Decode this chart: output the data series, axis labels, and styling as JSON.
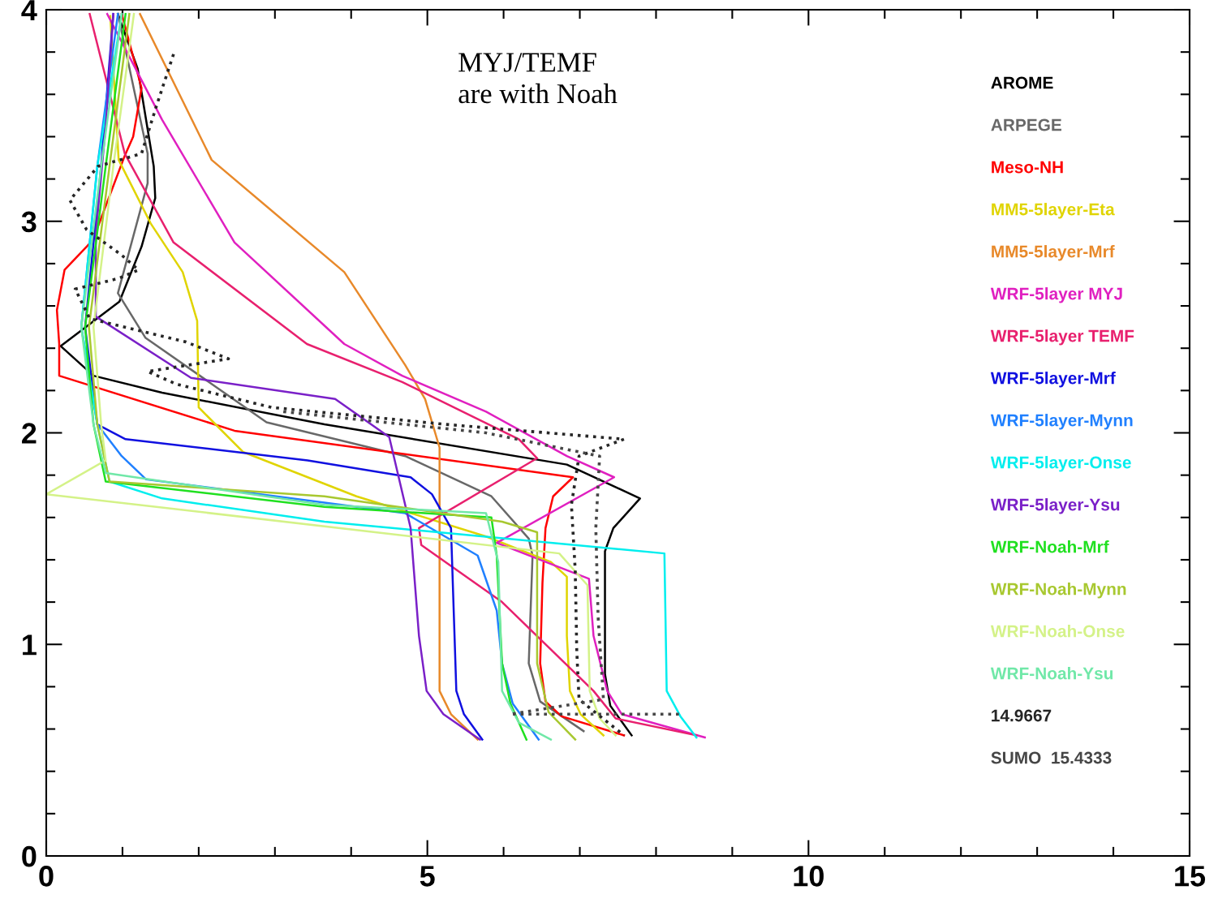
{
  "chart_data": {
    "type": "line",
    "xlim": [
      0,
      15
    ],
    "xticks": [
      0,
      5,
      10,
      15
    ],
    "ylim": [
      0,
      4
    ],
    "yticks": [
      0,
      1,
      2,
      3,
      4
    ],
    "legend": "right",
    "annotations": [
      "MYJ/TEMF\nare with Noah"
    ],
    "series": [
      {
        "name": "AROME",
        "color": "#000000",
        "x": [
          0.94,
          1.2,
          1.41,
          1.43,
          1.25,
          0.96,
          0.19,
          0.62,
          1.52,
          3.65,
          6.83,
          7.79,
          7.44,
          7.33,
          7.33,
          7.4,
          7.68
        ],
        "values": [
          3.98,
          3.72,
          3.26,
          3.11,
          2.88,
          2.62,
          2.41,
          2.27,
          2.19,
          2.04,
          1.85,
          1.69,
          1.55,
          1.44,
          0.86,
          0.71,
          0.57
        ]
      },
      {
        "name": "ARPEGE",
        "color": "#686868",
        "x": [
          0.94,
          1.33,
          1.33,
          0.94,
          1.3,
          2.89,
          4.71,
          5.84,
          6.33,
          6.38,
          6.33,
          6.48,
          7.05
        ],
        "values": [
          3.98,
          3.32,
          3.18,
          2.66,
          2.45,
          2.05,
          1.89,
          1.7,
          1.5,
          1.42,
          0.91,
          0.73,
          0.59
        ]
      },
      {
        "name": "Meso-NH",
        "color": "#ff0000",
        "x": [
          0.99,
          1.25,
          1.14,
          1.03,
          0.61,
          0.24,
          0.14,
          0.17,
          0.17,
          2.47,
          6.91,
          6.65,
          6.55,
          6.51,
          6.48,
          6.55,
          6.76,
          7.58
        ],
        "values": [
          3.98,
          3.63,
          3.4,
          3.31,
          2.91,
          2.77,
          2.58,
          2.42,
          2.27,
          2.01,
          1.79,
          1.7,
          1.55,
          1.29,
          0.91,
          0.73,
          0.66,
          0.57
        ]
      },
      {
        "name": "MM5-5layer-Eta",
        "color": "#e0d400",
        "x": [
          0.84,
          0.95,
          1.37,
          1.79,
          1.98,
          2.0,
          2.58,
          4.07,
          5.77,
          6.62,
          6.83,
          6.83,
          6.87,
          7.01,
          7.31
        ],
        "values": [
          3.97,
          3.29,
          2.99,
          2.76,
          2.53,
          2.12,
          1.91,
          1.7,
          1.51,
          1.39,
          1.32,
          1.04,
          0.78,
          0.67,
          0.57
        ]
      },
      {
        "name": "MM5-5layer-Mrf",
        "color": "#e8892a",
        "x": [
          1.23,
          2.17,
          3.91,
          4.71,
          4.97,
          5.16,
          5.16,
          5.31,
          5.66
        ],
        "values": [
          3.98,
          3.29,
          2.76,
          2.32,
          2.16,
          1.93,
          0.78,
          0.67,
          0.55
        ]
      },
      {
        "name": "WRF-5layer MYJ",
        "color": "#e020c0",
        "x": [
          0.8,
          1.52,
          2.47,
          3.91,
          4.67,
          5.77,
          6.83,
          7.45,
          5.91,
          7.12,
          7.18,
          7.36,
          7.55,
          8.64
        ],
        "values": [
          3.98,
          3.48,
          2.9,
          2.42,
          2.27,
          2.1,
          1.89,
          1.79,
          1.48,
          1.31,
          1.04,
          0.78,
          0.67,
          0.56
        ]
      },
      {
        "name": "WRF-5layer TEMF",
        "color": "#e8206e",
        "x": [
          0.57,
          1.03,
          1.67,
          3.42,
          4.67,
          6.2,
          6.44,
          4.89,
          4.92,
          5.98,
          7.18,
          7.47,
          8.53
        ],
        "values": [
          3.98,
          3.32,
          2.9,
          2.42,
          2.24,
          1.97,
          1.88,
          1.55,
          1.47,
          1.2,
          0.78,
          0.65,
          0.57
        ]
      },
      {
        "name": "WRF-5layer-Mrf",
        "color": "#1010e0",
        "x": [
          0.88,
          0.72,
          0.51,
          0.67,
          1.04,
          3.43,
          4.78,
          5.06,
          5.31,
          5.38,
          5.48,
          5.72
        ],
        "values": [
          3.98,
          3.26,
          2.5,
          2.04,
          1.97,
          1.87,
          1.79,
          1.71,
          1.55,
          0.78,
          0.67,
          0.55
        ]
      },
      {
        "name": "WRF-5layer-Mynn",
        "color": "#2080ff",
        "x": [
          0.94,
          0.67,
          0.46,
          0.67,
          0.99,
          1.31,
          4.71,
          5.66,
          5.91,
          5.98,
          6.12,
          6.46
        ],
        "values": [
          3.98,
          3.26,
          2.5,
          2.04,
          1.89,
          1.78,
          1.62,
          1.42,
          1.16,
          0.91,
          0.72,
          0.55
        ]
      },
      {
        "name": "WRF-5layer-Onse",
        "color": "#00eeee",
        "x": [
          0.99,
          0.67,
          0.46,
          0.67,
          0.83,
          1.52,
          3.65,
          8.11,
          8.14,
          8.32,
          8.53
        ],
        "values": [
          3.98,
          3.26,
          2.5,
          2.04,
          1.77,
          1.69,
          1.58,
          1.43,
          0.78,
          0.66,
          0.56
        ]
      },
      {
        "name": "WRF-5layer-Ysu",
        "color": "#7a20c8",
        "x": [
          0.88,
          0.78,
          0.65,
          0.65,
          1.9,
          3.79,
          4.5,
          4.78,
          4.89,
          4.99,
          5.21,
          5.69
        ],
        "values": [
          3.98,
          3.45,
          2.94,
          2.55,
          2.26,
          2.16,
          1.98,
          1.55,
          1.04,
          0.78,
          0.67,
          0.55
        ]
      },
      {
        "name": "WRF-Noah-Mrf",
        "color": "#20e020",
        "x": [
          1.04,
          0.78,
          0.51,
          0.62,
          0.78,
          3.65,
          5.84,
          5.91,
          5.98,
          6.09,
          6.3
        ],
        "values": [
          3.98,
          3.26,
          2.5,
          2.04,
          1.77,
          1.65,
          1.6,
          1.42,
          0.91,
          0.72,
          0.55
        ]
      },
      {
        "name": "WRF-Noah-Mynn",
        "color": "#a8c830",
        "x": [
          1.09,
          0.83,
          0.56,
          0.67,
          0.83,
          3.65,
          5.98,
          6.44,
          6.44,
          6.59,
          6.94
        ],
        "values": [
          3.98,
          3.26,
          2.5,
          2.04,
          1.77,
          1.7,
          1.58,
          1.53,
          0.91,
          0.68,
          0.55
        ]
      },
      {
        "name": "WRF-Noah-Onse",
        "color": "#d4f288",
        "x": [
          1.15,
          0.88,
          0.62,
          0.72,
          0.78,
          0.0,
          6.73,
          7.1,
          7.13,
          7.26,
          7.47
        ],
        "values": [
          3.98,
          3.26,
          2.5,
          2.04,
          1.87,
          1.71,
          1.43,
          1.28,
          0.78,
          0.65,
          0.57
        ]
      },
      {
        "name": "WRF-Noah-Ysu",
        "color": "#70e8a8",
        "x": [
          0.99,
          0.72,
          0.46,
          0.62,
          0.78,
          3.65,
          5.77,
          5.93,
          5.98,
          6.2,
          6.62
        ],
        "values": [
          3.98,
          3.26,
          2.5,
          2.04,
          1.81,
          1.66,
          1.62,
          1.39,
          0.78,
          0.63,
          0.55
        ]
      },
      {
        "name": "14.9667",
        "color": "#262626",
        "line_style": "dotted",
        "x": [
          1.67,
          1.45,
          1.25,
          0.68,
          0.31,
          0.53,
          0.99,
          1.21,
          0.95,
          0.38,
          0.57,
          1.83,
          2.39,
          1.33,
          1.71,
          2.96,
          5.24,
          7.58,
          6.99,
          6.89,
          6.94,
          6.96,
          6.99,
          7.58
        ],
        "values": [
          3.79,
          3.55,
          3.32,
          3.26,
          3.1,
          2.96,
          2.84,
          2.77,
          2.73,
          2.68,
          2.54,
          2.43,
          2.35,
          2.29,
          2.23,
          2.12,
          2.04,
          1.97,
          1.89,
          1.66,
          1.35,
          0.97,
          0.74,
          0.57
        ]
      },
      {
        "name": "SUMO  15.4333",
        "color": "#464646",
        "line_style": "dotted",
        "x": [
          3.11,
          5.77,
          7.26,
          7.21,
          7.24,
          7.31,
          6.09,
          8.32
        ],
        "values": [
          2.1,
          2.0,
          1.89,
          1.55,
          1.13,
          0.74,
          0.67,
          0.67
        ]
      }
    ]
  }
}
